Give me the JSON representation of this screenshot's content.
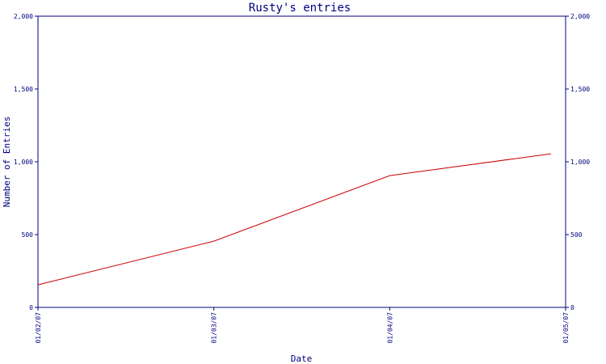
{
  "chart_data": {
    "type": "line",
    "title": "Rusty's entries",
    "xlabel": "Date",
    "ylabel": "Number of Entries",
    "x_ticks": [
      "01/02/07",
      "01/03/07",
      "01/04/07",
      "01/05/07"
    ],
    "y_ticks": [
      "0",
      "500",
      "1,000",
      "1,500",
      "2,000"
    ],
    "y_ticks_right": [
      "0",
      "500",
      "1,000",
      "1,500",
      "2,000"
    ],
    "ylim": [
      0,
      2000
    ],
    "xlim": [
      "2007-01-02",
      "2007-01-05"
    ],
    "series": [
      {
        "x": [
          "2007-01-02",
          "2007-01-03",
          "2007-01-04",
          "2007-01-04T22:00"
        ],
        "values": [
          155,
          455,
          905,
          1055
        ],
        "color": "#cc0000"
      }
    ],
    "grid": false,
    "legend": "none"
  }
}
